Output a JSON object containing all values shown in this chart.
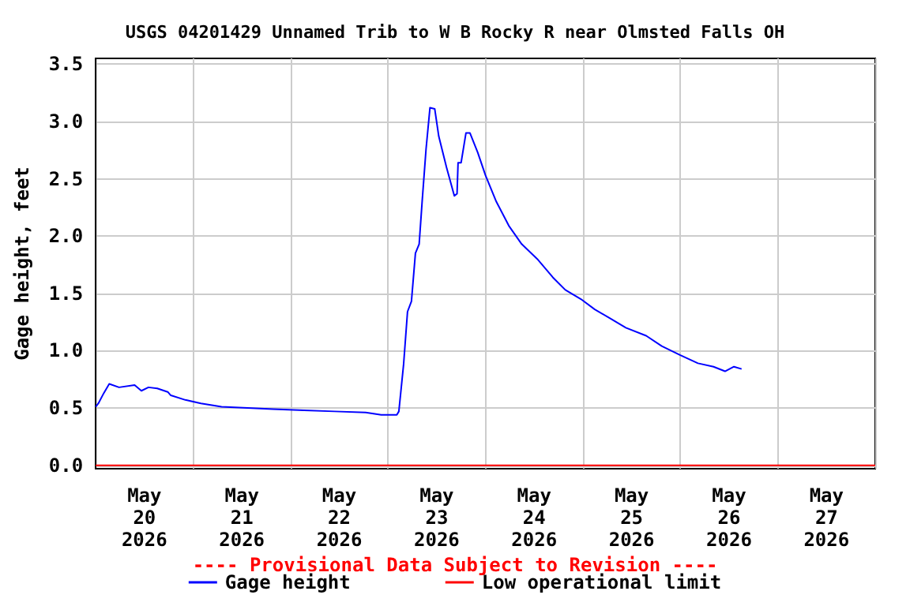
{
  "chart_data": {
    "type": "line",
    "title": "USGS 04201429 Unnamed Trib to W B Rocky R near Olmsted Falls OH",
    "ylabel": "Gage height, feet",
    "annotations": [
      "---- Provisional Data Subject to Revision ----"
    ],
    "xlim": [
      "2026-05-20T00:00",
      "2026-05-28T00:00"
    ],
    "xticks": [
      {
        "value": "2026-05-20T00:00",
        "label": null
      },
      {
        "value": "2026-05-20T12:00",
        "label": "May\n20\n2026"
      },
      {
        "value": "2026-05-21T00:00",
        "label": null
      },
      {
        "value": "2026-05-21T12:00",
        "label": "May\n21\n2026"
      },
      {
        "value": "2026-05-22T00:00",
        "label": null
      },
      {
        "value": "2026-05-22T12:00",
        "label": "May\n22\n2026"
      },
      {
        "value": "2026-05-23T00:00",
        "label": null
      },
      {
        "value": "2026-05-23T12:00",
        "label": "May\n23\n2026"
      },
      {
        "value": "2026-05-24T00:00",
        "label": null
      },
      {
        "value": "2026-05-24T12:00",
        "label": "May\n24\n2026"
      },
      {
        "value": "2026-05-25T00:00",
        "label": null
      },
      {
        "value": "2026-05-25T12:00",
        "label": "May\n25\n2026"
      },
      {
        "value": "2026-05-26T00:00",
        "label": null
      },
      {
        "value": "2026-05-26T12:00",
        "label": "May\n26\n2026"
      },
      {
        "value": "2026-05-27T00:00",
        "label": null
      },
      {
        "value": "2026-05-27T12:00",
        "label": "May\n27\n2026"
      },
      {
        "value": "2026-05-28T00:00",
        "label": null
      }
    ],
    "ylim": [
      -0.03,
      3.55
    ],
    "yticks": [
      {
        "value": 0,
        "label": "0.0"
      },
      {
        "value": 0.5,
        "label": "0.5"
      },
      {
        "value": 1,
        "label": "1.0"
      },
      {
        "value": 1.5,
        "label": "1.5"
      },
      {
        "value": 2,
        "label": "2.0"
      },
      {
        "value": 2.5,
        "label": "2.5"
      },
      {
        "value": 3,
        "label": "3.0"
      },
      {
        "value": 3.5,
        "label": "3.5"
      }
    ],
    "grid": true,
    "legend": "bottom",
    "marker": "none",
    "line_style": "solid",
    "series": [
      {
        "name": "Gage height",
        "color": "#0000ff",
        "x": [
          "2026-05-20T00:00",
          "2026-05-20T00:40",
          "2026-05-20T02:00",
          "2026-05-20T03:20",
          "2026-05-20T05:45",
          "2026-05-20T09:35",
          "2026-05-20T11:15",
          "2026-05-20T13:00",
          "2026-05-20T15:10",
          "2026-05-20T17:45",
          "2026-05-20T18:30",
          "2026-05-20T22:05",
          "2026-05-21T01:55",
          "2026-05-21T07:00",
          "2026-05-21T13:25",
          "2026-05-21T19:40",
          "2026-05-22T03:20",
          "2026-05-22T10:48",
          "2026-05-22T18:30",
          "2026-05-22T22:20",
          "2026-05-23T02:10",
          "2026-05-23T02:40",
          "2026-05-23T03:50",
          "2026-05-23T04:48",
          "2026-05-23T05:46",
          "2026-05-23T06:45",
          "2026-05-23T07:40",
          "2026-05-23T08:24",
          "2026-05-23T09:22",
          "2026-05-23T10:20",
          "2026-05-23T11:30",
          "2026-05-23T12:30",
          "2026-05-23T14:24",
          "2026-05-23T16:20",
          "2026-05-23T17:00",
          "2026-05-23T17:15",
          "2026-05-23T18:00",
          "2026-05-23T19:12",
          "2026-05-23T20:10",
          "2026-05-23T22:05",
          "2026-05-24T00:00",
          "2026-05-24T02:40",
          "2026-05-24T05:45",
          "2026-05-24T08:55",
          "2026-05-24T12:45",
          "2026-05-24T16:35",
          "2026-05-24T19:40",
          "2026-05-24T23:30",
          "2026-05-25T02:55",
          "2026-05-25T06:45",
          "2026-05-25T10:35",
          "2026-05-25T15:35",
          "2026-05-25T19:25",
          "2026-05-26T00:00",
          "2026-05-26T04:20",
          "2026-05-26T08:10",
          "2026-05-26T11:00",
          "2026-05-26T13:12",
          "2026-05-26T15:05"
        ],
        "values": [
          0.51,
          0.54,
          0.63,
          0.71,
          0.68,
          0.7,
          0.65,
          0.68,
          0.67,
          0.64,
          0.61,
          0.57,
          0.54,
          0.51,
          0.5,
          0.49,
          0.48,
          0.47,
          0.46,
          0.44,
          0.44,
          0.47,
          0.88,
          1.34,
          1.43,
          1.85,
          1.93,
          2.3,
          2.76,
          3.12,
          3.11,
          2.87,
          2.6,
          2.35,
          2.37,
          2.64,
          2.64,
          2.9,
          2.9,
          2.73,
          2.53,
          2.3,
          2.09,
          1.93,
          1.8,
          1.64,
          1.53,
          1.45,
          1.36,
          1.28,
          1.2,
          1.13,
          1.04,
          0.96,
          0.89,
          0.86,
          0.82,
          0.86,
          0.84
        ]
      },
      {
        "name": "Low operational limit",
        "color": "#ff0000",
        "x": [
          "2026-05-20T00:00",
          "2026-05-28T00:00"
        ],
        "values": [
          0,
          0
        ]
      }
    ]
  }
}
